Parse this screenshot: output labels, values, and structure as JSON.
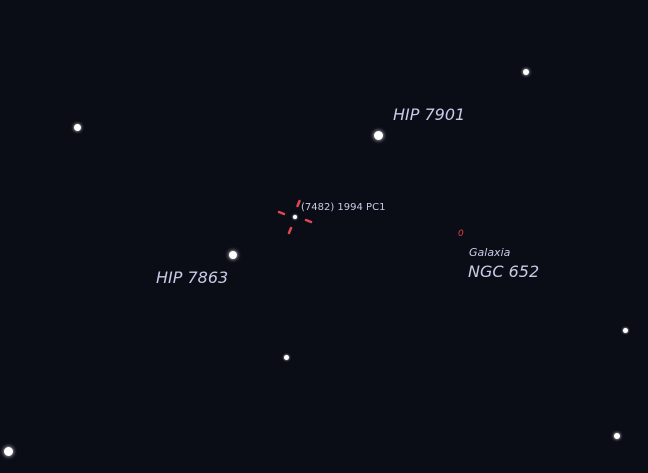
{
  "labels": {
    "hip7901": "HIP 7901",
    "hip7863": "HIP 7863",
    "asteroid": "(7482) 1994 PC1",
    "galaxy_marker": "0",
    "galaxy_kind": "Galaxia",
    "galaxy_name": "NGC 652"
  },
  "colors": {
    "background": "#0a0c16",
    "label": "#c9cbe6",
    "reticle": "#e04850",
    "galaxy_marker": "#e04040"
  }
}
